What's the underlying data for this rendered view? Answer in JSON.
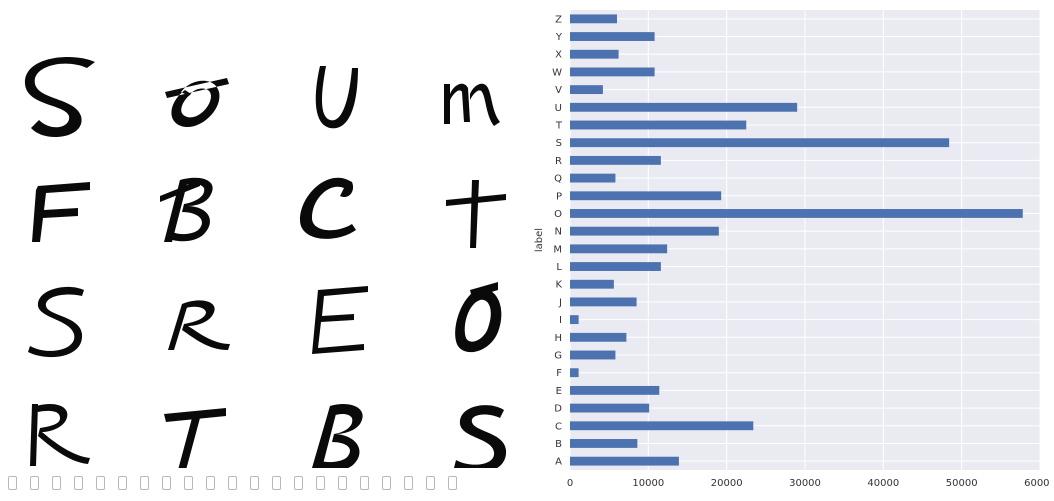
{
  "letter_samples": {
    "rows": [
      [
        "S",
        "O",
        "U",
        "m"
      ],
      [
        "F",
        "B",
        "C",
        "t"
      ],
      [
        "S",
        "R",
        "E",
        "O"
      ],
      [
        "R",
        "T",
        "B",
        "S"
      ]
    ]
  },
  "chart_data": {
    "type": "bar",
    "orientation": "horizontal",
    "ylabel": "label",
    "xlabel": "",
    "xlim": [
      0,
      60000
    ],
    "xticks": [
      0,
      10000,
      20000,
      30000,
      40000,
      50000,
      60000
    ],
    "grid": true,
    "categories": [
      "A",
      "B",
      "C",
      "D",
      "E",
      "F",
      "G",
      "H",
      "I",
      "J",
      "K",
      "L",
      "M",
      "N",
      "O",
      "P",
      "Q",
      "R",
      "S",
      "T",
      "U",
      "V",
      "W",
      "X",
      "Y",
      "Z"
    ],
    "values": [
      13900,
      8600,
      23400,
      10100,
      11400,
      1100,
      5800,
      7200,
      1100,
      8500,
      5600,
      11600,
      12400,
      19000,
      57800,
      19300,
      5800,
      11600,
      48400,
      22500,
      29000,
      4200,
      10800,
      6200,
      10800,
      6000
    ],
    "colors": {
      "bar": "#4c72b0",
      "plot_bg": "#eaeaf2",
      "grid": "#ffffff"
    }
  }
}
